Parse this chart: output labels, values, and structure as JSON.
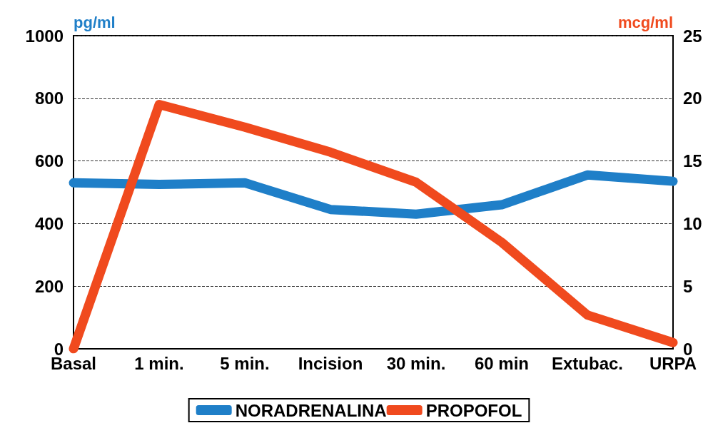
{
  "chart_data": {
    "type": "line",
    "ylabel": "pg/ml",
    "y2label": "mcg/ml",
    "categories": [
      "Basal",
      "1 min.",
      "5 min.",
      "Incision",
      "30 min.",
      "60 min",
      "Extubac.",
      "URPA"
    ],
    "series": [
      {
        "name": "NORADRENALINA",
        "color": "#1f7fc8",
        "values": [
          530,
          525,
          530,
          445,
          430,
          460,
          555,
          535
        ]
      },
      {
        "name": "PROPOFOL",
        "color": "#f04a1e",
        "axis": "y2",
        "values": [
          0,
          19.5,
          17.7,
          15.7,
          13.3,
          8.5,
          2.7,
          0.5
        ]
      }
    ],
    "ylim": [
      0,
      1000
    ],
    "yticks": [
      0,
      200,
      400,
      600,
      800,
      1000
    ],
    "y2lim": [
      0,
      25
    ],
    "y2ticks": [
      0,
      5,
      10,
      15,
      20,
      25
    ],
    "grid": "y",
    "legend": "bottom",
    "line_style": "solid"
  }
}
